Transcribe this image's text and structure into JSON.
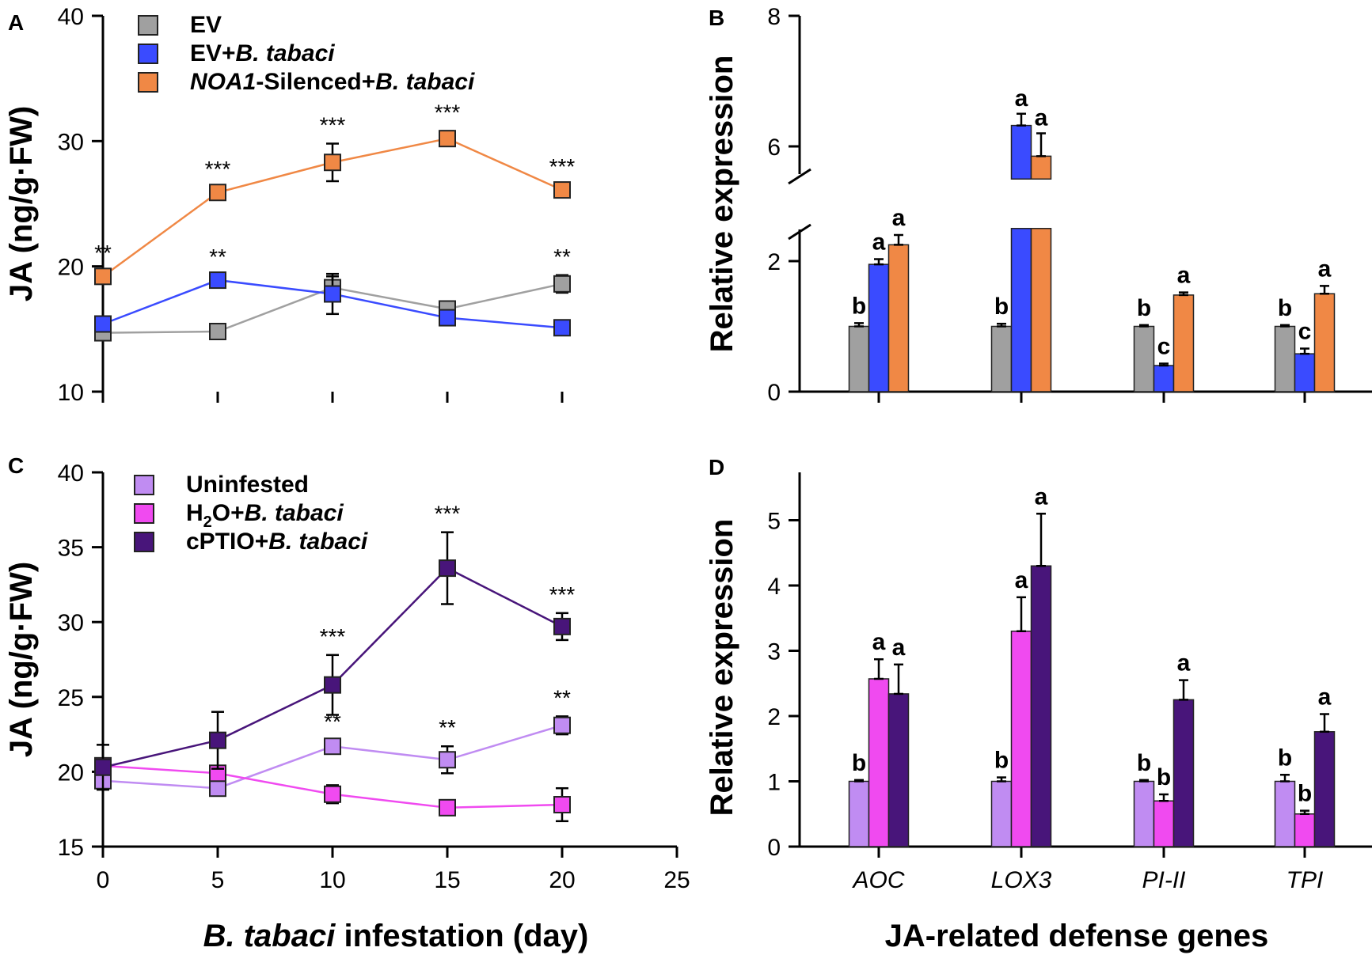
{
  "chart_data": [
    {
      "panel": "A",
      "type": "line",
      "ylabel": "JA (ng/g·FW)",
      "ylim": [
        10,
        40
      ],
      "yticks": [
        "10",
        "20",
        "30",
        "40"
      ],
      "x": [
        0,
        5,
        10,
        15,
        20
      ],
      "series": [
        {
          "name": "EV",
          "legend_parts": [
            "EV"
          ],
          "color": "#a0a0a0",
          "values": [
            14.7,
            14.8,
            18.3,
            16.6,
            18.6
          ],
          "errors": [
            0.4,
            0.3,
            0.9,
            0.4,
            0.7
          ]
        },
        {
          "name": "EV+B. tabaci",
          "legend_parts": [
            "EV+",
            "B. tabaci"
          ],
          "color": "#3a4bff",
          "values": [
            15.4,
            18.9,
            17.8,
            15.9,
            15.1
          ],
          "errors": [
            0.6,
            0.4,
            1.6,
            0.4,
            0.4
          ]
        },
        {
          "name": "NOA1-Silenced+B. tabaci",
          "legend_parts": [
            "NOA1",
            "-Silenced+",
            "B. tabaci"
          ],
          "color": "#f08845",
          "values": [
            19.2,
            25.9,
            28.3,
            30.2,
            26.1
          ],
          "errors": [
            0.4,
            0.4,
            1.5,
            0.6,
            0.4
          ]
        }
      ],
      "significance": [
        {
          "x": 0,
          "text": "**"
        },
        {
          "x": 5,
          "text": "***"
        },
        {
          "x": 10,
          "text": "***"
        },
        {
          "x": 15,
          "text": "***"
        },
        {
          "x": 20,
          "text": "***"
        },
        {
          "x": 5,
          "text": "**",
          "series": 1
        },
        {
          "x": 20,
          "text": "**",
          "series": 0
        }
      ]
    },
    {
      "panel": "B",
      "type": "bar",
      "ylabel": "Relative expression",
      "broken_axis": {
        "lower": [
          0,
          2.5
        ],
        "upper": [
          5.5,
          8
        ]
      },
      "yticks": [
        "0",
        "2",
        "6",
        "8"
      ],
      "categories": [
        "AOC",
        "LOX3",
        "PI-II",
        "TPI"
      ],
      "series": [
        {
          "name": "EV",
          "color": "#a0a0a0",
          "values": [
            1.0,
            1.0,
            1.0,
            1.0
          ],
          "errors": [
            0.05,
            0.04,
            0.02,
            0.02
          ],
          "letters": [
            "b",
            "b",
            "b",
            "b"
          ]
        },
        {
          "name": "EV+B. tabaci",
          "color": "#3a4bff",
          "values": [
            1.95,
            6.32,
            0.4,
            0.58
          ],
          "errors": [
            0.08,
            0.18,
            0.03,
            0.08
          ],
          "letters": [
            "a",
            "a",
            "c",
            "c"
          ]
        },
        {
          "name": "NOA1-Silenced+B. tabaci",
          "color": "#f08845",
          "values": [
            2.25,
            5.85,
            1.48,
            1.5
          ],
          "errors": [
            0.15,
            0.35,
            0.04,
            0.12
          ],
          "letters": [
            "a",
            "a",
            "a",
            "a"
          ]
        }
      ]
    },
    {
      "panel": "C",
      "type": "line",
      "ylabel": "JA (ng/g·FW)",
      "ylim": [
        15,
        40
      ],
      "yticks": [
        "15",
        "20",
        "25",
        "30",
        "35",
        "40"
      ],
      "xticks": [
        "0",
        "5",
        "10",
        "15",
        "20",
        "25"
      ],
      "xlabel_parts": [
        "B. tabaci",
        " infestation (day)"
      ],
      "x": [
        0,
        5,
        10,
        15,
        20
      ],
      "series": [
        {
          "name": "Uninfested",
          "legend_parts": [
            "Uninfested"
          ],
          "color": "#c08cf2",
          "values": [
            19.4,
            18.9,
            21.7,
            20.8,
            23.1
          ],
          "errors": [
            0.4,
            0.5,
            0.4,
            0.9,
            0.6
          ]
        },
        {
          "name": "H2O+B. tabaci",
          "legend_parts": [
            "H",
            "2",
            "O+",
            "B. tabaci"
          ],
          "color": "#f04af0",
          "values": [
            20.4,
            19.9,
            18.5,
            17.6,
            17.8
          ],
          "errors": [
            0.5,
            0.5,
            0.6,
            0.3,
            1.1
          ]
        },
        {
          "name": "cPTIO+B. tabaci",
          "legend_parts": [
            "cPTIO+",
            "B. tabaci"
          ],
          "color": "#48157a",
          "values": [
            20.3,
            22.1,
            25.8,
            33.6,
            29.7
          ],
          "errors": [
            1.5,
            1.9,
            2.0,
            2.4,
            0.9
          ]
        }
      ],
      "significance": [
        {
          "x": 10,
          "text": "***",
          "series": 2
        },
        {
          "x": 15,
          "text": "***",
          "series": 2
        },
        {
          "x": 20,
          "text": "***",
          "series": 2
        },
        {
          "x": 10,
          "text": "**",
          "series": 0
        },
        {
          "x": 15,
          "text": "**",
          "series": 0
        },
        {
          "x": 20,
          "text": "**",
          "series": 0
        }
      ]
    },
    {
      "panel": "D",
      "type": "bar",
      "ylabel": "Relative expression",
      "ylim": [
        0,
        5.8
      ],
      "yticks": [
        "0",
        "1",
        "2",
        "3",
        "4",
        "5"
      ],
      "categories": [
        "AOC",
        "LOX3",
        "PI-II",
        "TPI"
      ],
      "xlabel": "JA-related defense genes",
      "series": [
        {
          "name": "Uninfested",
          "color": "#c08cf2",
          "values": [
            1.0,
            1.0,
            1.0,
            1.0
          ],
          "errors": [
            0.02,
            0.06,
            0.02,
            0.1
          ],
          "letters": [
            "b",
            "b",
            "b",
            "b"
          ]
        },
        {
          "name": "H2O+B. tabaci",
          "color": "#f04af0",
          "values": [
            2.57,
            3.3,
            0.7,
            0.5
          ],
          "errors": [
            0.3,
            0.52,
            0.1,
            0.05
          ],
          "letters": [
            "a",
            "a",
            "b",
            "b"
          ]
        },
        {
          "name": "cPTIO+B. tabaci",
          "color": "#48157a",
          "values": [
            2.34,
            4.3,
            2.25,
            1.76
          ],
          "errors": [
            0.45,
            0.8,
            0.3,
            0.27
          ],
          "letters": [
            "a",
            "a",
            "a",
            "a"
          ]
        }
      ]
    }
  ]
}
